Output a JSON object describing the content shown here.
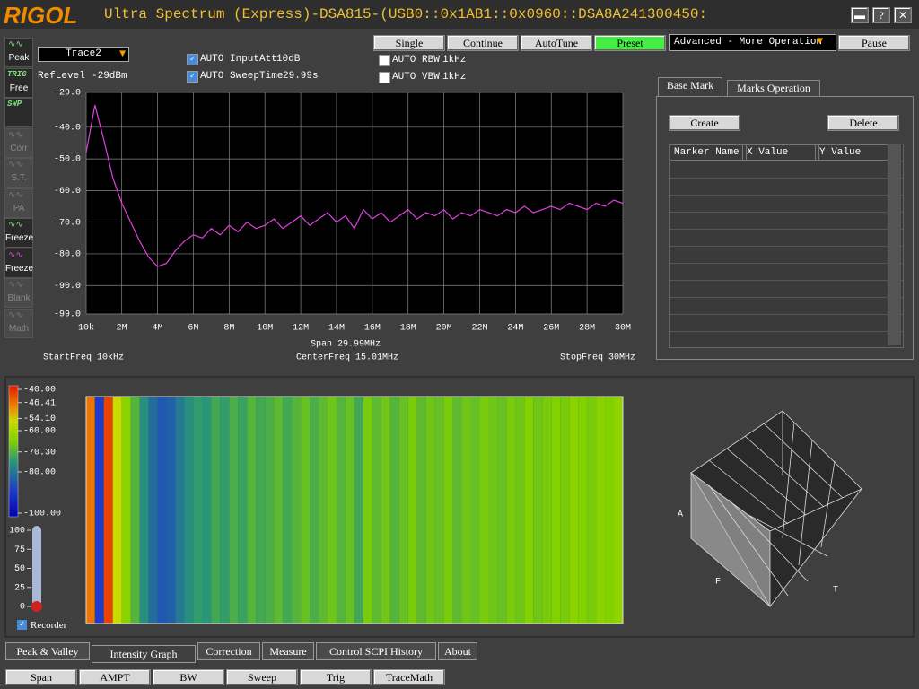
{
  "window": {
    "logo": "RIGOL",
    "title": "Ultra Spectrum (Express)-DSA815-(USB0::0x1AB1::0x0960::DSA8A241300450:",
    "controls": [
      "▬",
      "?",
      "✕"
    ]
  },
  "toolbar": {
    "buttons": [
      "Single",
      "Continue",
      "AutoTune",
      "Preset"
    ],
    "mode": "Advanced - More Operation",
    "pause": "Pause"
  },
  "side_icons": [
    {
      "label": "Peak"
    },
    {
      "caption": "TRIG",
      "label": "Free"
    },
    {
      "caption": "SWP"
    },
    {
      "label": "Corr"
    },
    {
      "label": "S.T."
    },
    {
      "label": "PA"
    },
    {
      "label": "Freeze"
    },
    {
      "label": "Freeze"
    },
    {
      "label": "Blank"
    },
    {
      "label": "Math"
    }
  ],
  "trace_select": "Trace2",
  "ref_level": {
    "label": "RefLevel",
    "value": "-29dBm"
  },
  "settings": [
    {
      "label": "AUTO InputAtt",
      "value": "10dB",
      "checked": true
    },
    {
      "label": "AUTO SweepTime",
      "value": "29.99s",
      "checked": true
    },
    {
      "label": "AUTO RBW",
      "value": "1kHz",
      "checked": false
    },
    {
      "label": "AUTO VBW",
      "value": "1kHz",
      "checked": false
    }
  ],
  "spectrum": {
    "xlim": [
      0.01,
      30
    ],
    "ylim": [
      -99,
      -29
    ],
    "xticks": [
      {
        "value": 0.01,
        "label": "10k"
      },
      {
        "value": 2,
        "label": "2M"
      },
      {
        "value": 4,
        "label": "4M"
      },
      {
        "value": 6,
        "label": "6M"
      },
      {
        "value": 8,
        "label": "8M"
      },
      {
        "value": 10,
        "label": "10M"
      },
      {
        "value": 12,
        "label": "12M"
      },
      {
        "value": 14,
        "label": "14M"
      },
      {
        "value": 16,
        "label": "16M"
      },
      {
        "value": 18,
        "label": "18M"
      },
      {
        "value": 20,
        "label": "20M"
      },
      {
        "value": 22,
        "label": "22M"
      },
      {
        "value": 24,
        "label": "24M"
      },
      {
        "value": 26,
        "label": "26M"
      },
      {
        "value": 28,
        "label": "28M"
      },
      {
        "value": 30,
        "label": "30M"
      }
    ],
    "yticks": [
      {
        "value": -29,
        "label": "-29.0"
      },
      {
        "value": -40,
        "label": "-40.0"
      },
      {
        "value": -50,
        "label": "-50.0"
      },
      {
        "value": -60,
        "label": "-60.0"
      },
      {
        "value": -70,
        "label": "-70.0"
      },
      {
        "value": -80,
        "label": "-80.0"
      },
      {
        "value": -90,
        "label": "-90.0"
      },
      {
        "value": -99,
        "label": "-99.0"
      }
    ],
    "trace": {
      "color": "#e040e0",
      "x": [
        0.01,
        0.5,
        1,
        1.5,
        2,
        2.5,
        3,
        3.5,
        4,
        4.5,
        5,
        5.5,
        6,
        6.5,
        7,
        7.5,
        8,
        8.5,
        9,
        9.5,
        10,
        10.5,
        11,
        11.5,
        12,
        12.5,
        13,
        13.5,
        14,
        14.5,
        15,
        15.5,
        16,
        16.5,
        17,
        17.5,
        18,
        18.5,
        19,
        19.5,
        20,
        20.5,
        21,
        21.5,
        22,
        22.5,
        23,
        23.5,
        24,
        24.5,
        25,
        25.5,
        26,
        26.5,
        27,
        27.5,
        28,
        28.5,
        29,
        29.5,
        30
      ],
      "values": [
        -48,
        -33,
        -44,
        -56,
        -64,
        -70,
        -76,
        -81,
        -84,
        -83,
        -79,
        -76,
        -74,
        -75,
        -72,
        -74,
        -71,
        -73,
        -70,
        -72,
        -71,
        -69,
        -72,
        -70,
        -68,
        -71,
        -69,
        -67,
        -70,
        -68,
        -72,
        -66,
        -69,
        -67,
        -70,
        -68,
        -66,
        -69,
        -67,
        -68,
        -66,
        -69,
        -67,
        -68,
        -66,
        -67,
        -68,
        -66,
        -67,
        -65,
        -67,
        -66,
        -65,
        -66,
        -64,
        -65,
        -66,
        -64,
        -65,
        -63,
        -64
      ]
    },
    "span": "Span  29.99MHz",
    "start": "StartFreq  10kHz",
    "center": "CenterFreq  15.01MHz",
    "stop": "StopFreq  30MHz"
  },
  "markers": {
    "tabs": [
      "Base Mark",
      "Marks Operation"
    ],
    "create": "Create",
    "delete": "Delete",
    "columns": [
      "Marker Name",
      "X Value",
      "Y Value"
    ]
  },
  "colorbar": {
    "lim": [
      -40,
      -100
    ],
    "ticks": [
      {
        "value": -40,
        "label": "-40.00"
      },
      {
        "value": -46.41,
        "label": "-46.41"
      },
      {
        "value": -54.1,
        "label": "-54.10"
      },
      {
        "value": -60,
        "label": "-60.00"
      },
      {
        "value": -70.3,
        "label": "-70.30"
      },
      {
        "value": -80,
        "label": "-80.00"
      },
      {
        "value": -100,
        "label": "-100.00"
      }
    ]
  },
  "slider": {
    "lim": [
      0,
      100
    ],
    "ticks": [
      100,
      75,
      50,
      25,
      0
    ]
  },
  "recorder": "Recorder",
  "view3d": {
    "axes": [
      "A",
      "F",
      "T"
    ]
  },
  "tabs": [
    "Peak & Valley",
    "Intensity Graph",
    "Correction",
    "Measure",
    "Control SCPI History",
    "About"
  ],
  "bottom_buttons": [
    "Span",
    "AMPT",
    "BW",
    "Sweep",
    "Trig",
    "TraceMath"
  ]
}
